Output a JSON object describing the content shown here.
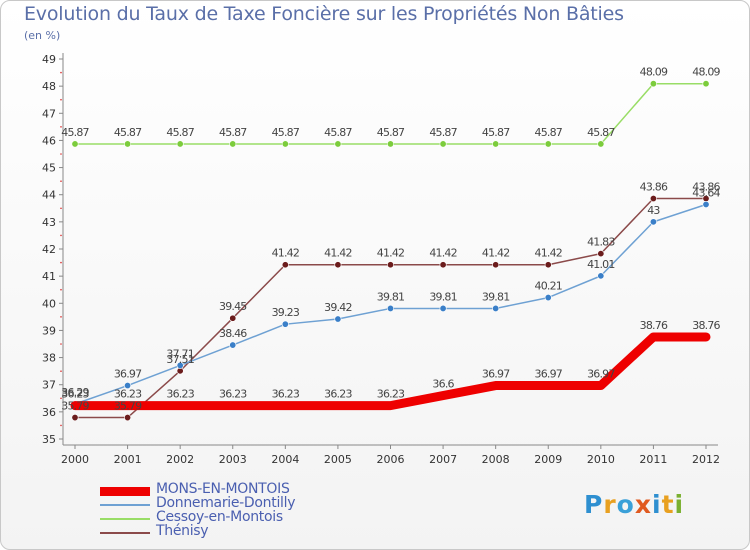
{
  "title": "Evolution du Taux de Taxe Foncière sur les Propriétés Non Bâties",
  "subtitle": "(en %)",
  "brand": {
    "text": "Proxiti",
    "letter_colors": [
      "#2e8fd0",
      "#e8a020",
      "#3aa0d8",
      "#e05a20",
      "#2e8fd0",
      "#e8a020",
      "#7ab030"
    ]
  },
  "chart_data": {
    "type": "line",
    "x": [
      "2000",
      "2001",
      "2002",
      "2003",
      "2004",
      "2005",
      "2006",
      "2007",
      "2008",
      "2009",
      "2010",
      "2011",
      "2012"
    ],
    "ylim": [
      35,
      49
    ],
    "yticks": [
      35,
      36,
      37,
      38,
      39,
      40,
      41,
      42,
      43,
      44,
      45,
      46,
      47,
      48,
      49
    ],
    "grid": false,
    "legend_position": "bottom-left",
    "series": [
      {
        "name": "MONS-EN-MONTOIS",
        "color": "#ee0000",
        "width": 9,
        "values": [
          36.23,
          36.23,
          36.23,
          36.23,
          36.23,
          36.23,
          36.23,
          36.6,
          36.97,
          36.97,
          36.97,
          38.76,
          38.76
        ],
        "labels": [
          "36.23",
          "36.23",
          "36.23",
          "36.23",
          "36.23",
          "36.23",
          "36.23",
          "36.6",
          "36.97",
          "36.97",
          "36.97",
          "38.76",
          "38.76"
        ]
      },
      {
        "name": "Donnemarie-Dontilly",
        "color": "#6ea1d3",
        "marker": "#3a7fc8",
        "width": 1.5,
        "values": [
          36.29,
          36.97,
          37.71,
          38.46,
          39.23,
          39.42,
          39.81,
          39.81,
          39.81,
          40.21,
          41.01,
          43.0,
          43.64
        ],
        "labels": [
          "36.29",
          "36.97",
          "37.71",
          "38.46",
          "39.23",
          "39.42",
          "39.81",
          "39.81",
          "39.81",
          "40.21",
          "41.01",
          "43",
          "43.64"
        ]
      },
      {
        "name": "Cessoy-en-Montois",
        "color": "#99dd66",
        "marker": "#7ccc3c",
        "width": 1.5,
        "values": [
          45.87,
          45.87,
          45.87,
          45.87,
          45.87,
          45.87,
          45.87,
          45.87,
          45.87,
          45.87,
          45.87,
          48.09,
          48.09
        ],
        "labels": [
          "45.87",
          "45.87",
          "45.87",
          "45.87",
          "45.87",
          "45.87",
          "45.87",
          "45.87",
          "45.87",
          "45.87",
          "45.87",
          "48.09",
          "48.09"
        ]
      },
      {
        "name": "Thénisy",
        "color": "#8b4a4a",
        "marker": "#6b1c1c",
        "width": 1.5,
        "values": [
          35.79,
          35.79,
          37.51,
          39.45,
          41.42,
          41.42,
          41.42,
          41.42,
          41.42,
          41.42,
          41.83,
          43.86,
          43.86
        ],
        "labels": [
          "35.79",
          "35.79",
          "37.51",
          "39.45",
          "41.42",
          "41.42",
          "41.42",
          "41.42",
          "41.42",
          "41.42",
          "41.83",
          "43.86",
          "43.86"
        ]
      }
    ]
  }
}
